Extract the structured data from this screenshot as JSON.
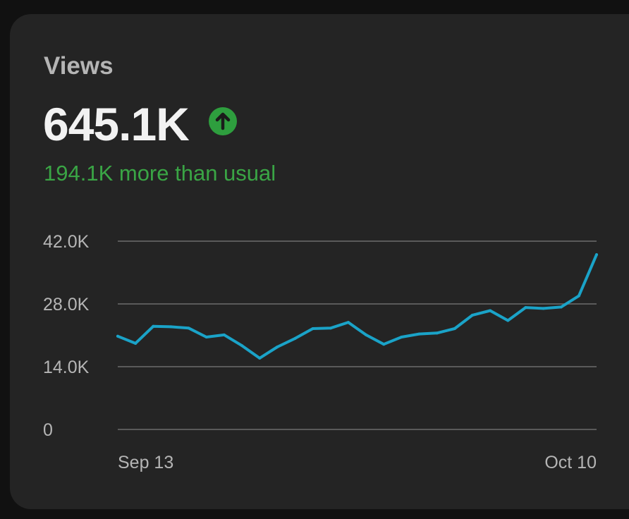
{
  "card": {
    "title": "Views",
    "value": "645.1K",
    "trend_icon": "arrow-up-circle-icon",
    "delta_text": "194.1K more than usual"
  },
  "colors": {
    "background": "#111111",
    "card": "#242424",
    "line": "#1aa3c8",
    "positive": "#3aa545",
    "grid": "#5a5a5a"
  },
  "chart_data": {
    "type": "line",
    "title": "",
    "xlabel": "",
    "ylabel": "",
    "ylim": [
      0,
      42000
    ],
    "y_ticks": [
      {
        "value": 42000,
        "label": "42.0K"
      },
      {
        "value": 28000,
        "label": "28.0K"
      },
      {
        "value": 14000,
        "label": "14.0K"
      },
      {
        "value": 0,
        "label": "0"
      }
    ],
    "x_tick_labels": [
      "Sep 13",
      "Oct 10"
    ],
    "x": [
      "Sep 13",
      "Sep 14",
      "Sep 15",
      "Sep 16",
      "Sep 17",
      "Sep 18",
      "Sep 19",
      "Sep 20",
      "Sep 21",
      "Sep 22",
      "Sep 23",
      "Sep 24",
      "Sep 25",
      "Sep 26",
      "Sep 27",
      "Sep 28",
      "Sep 29",
      "Sep 30",
      "Oct 1",
      "Oct 2",
      "Oct 3",
      "Oct 4",
      "Oct 5",
      "Oct 6",
      "Oct 7",
      "Oct 8",
      "Oct 9",
      "Oct 10"
    ],
    "series": [
      {
        "values": [
          20800,
          19200,
          23000,
          22900,
          22600,
          20600,
          21100,
          18700,
          15900,
          18400,
          20300,
          22500,
          22600,
          23900,
          21100,
          19000,
          20600,
          21300,
          21500,
          22500,
          25500,
          26500,
          24300,
          27200,
          27000,
          27300,
          29800,
          39000
        ]
      }
    ],
    "grid": true,
    "legend": "none"
  }
}
